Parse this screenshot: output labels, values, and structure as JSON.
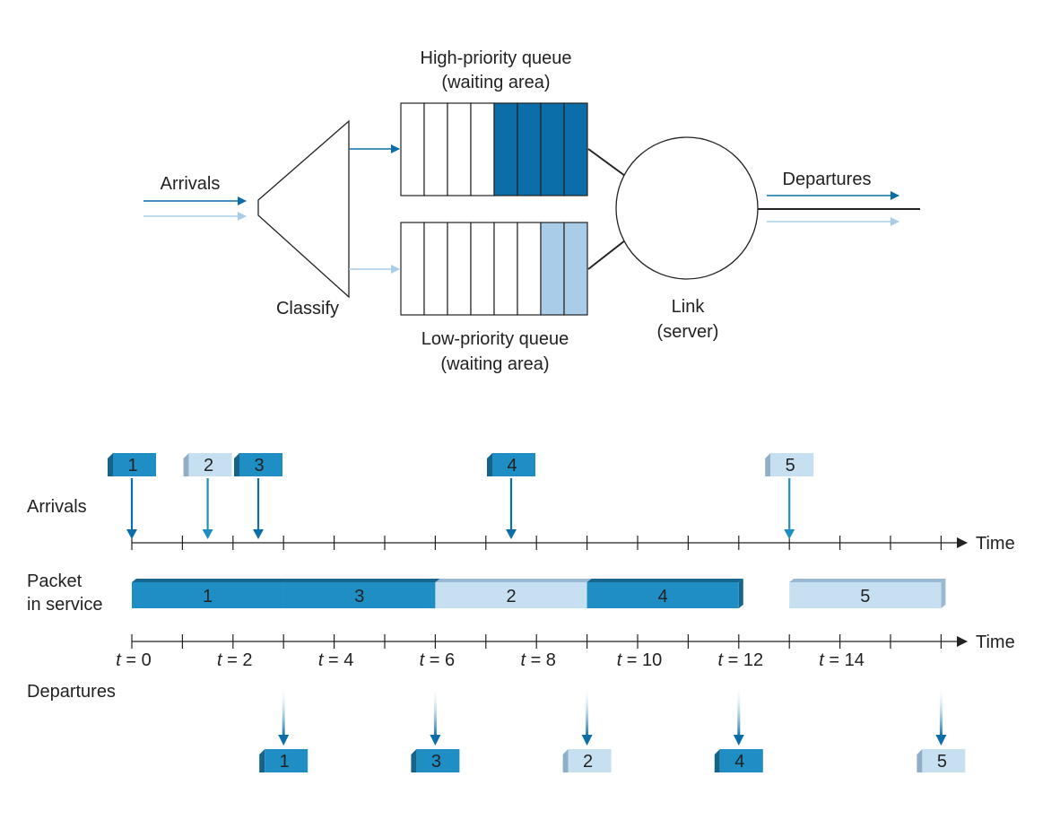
{
  "colors": {
    "high": "#0b6ea8",
    "high_mid": "#1f8ec4",
    "low": "#a9cde8",
    "low_light": "#c6e0f2",
    "line": "#222222"
  },
  "top": {
    "high_queue_label": [
      "High-priority queue",
      "(waiting area)"
    ],
    "low_queue_label": [
      "Low-priority queue",
      "(waiting area)"
    ],
    "arrivals_label": "Arrivals",
    "classify_label": "Classify",
    "departures_label": "Departures",
    "link_label": [
      "Link",
      "(server)"
    ],
    "high_queue": {
      "slots": 8,
      "filled": 4
    },
    "low_queue": {
      "slots": 8,
      "filled": 2
    }
  },
  "timeline": {
    "arrivals_row_label": "Arrivals",
    "service_row_label": [
      "Packet",
      "in service"
    ],
    "departures_row_label": "Departures",
    "time_label": "Time",
    "t_prefix": "t",
    "tick_labels": [
      0,
      2,
      4,
      6,
      8,
      10,
      12,
      14
    ],
    "arrivals": [
      {
        "id": "1",
        "time": 0,
        "priority": "high"
      },
      {
        "id": "2",
        "time": 1.5,
        "priority": "low"
      },
      {
        "id": "3",
        "time": 2.5,
        "priority": "high"
      },
      {
        "id": "4",
        "time": 7.5,
        "priority": "high"
      },
      {
        "id": "5",
        "time": 13,
        "priority": "low"
      }
    ],
    "service": [
      {
        "id": "1",
        "start": 0,
        "end": 3,
        "priority": "high"
      },
      {
        "id": "3",
        "start": 3,
        "end": 6,
        "priority": "high"
      },
      {
        "id": "2",
        "start": 6,
        "end": 9,
        "priority": "low"
      },
      {
        "id": "4",
        "start": 9,
        "end": 12,
        "priority": "high"
      },
      {
        "id": "5",
        "start": 13,
        "end": 16,
        "priority": "low"
      }
    ],
    "departures": [
      {
        "id": "1",
        "time": 3,
        "priority": "high"
      },
      {
        "id": "3",
        "time": 6,
        "priority": "high"
      },
      {
        "id": "2",
        "time": 9,
        "priority": "low"
      },
      {
        "id": "4",
        "time": 12,
        "priority": "high"
      },
      {
        "id": "5",
        "time": 16,
        "priority": "low"
      }
    ]
  }
}
